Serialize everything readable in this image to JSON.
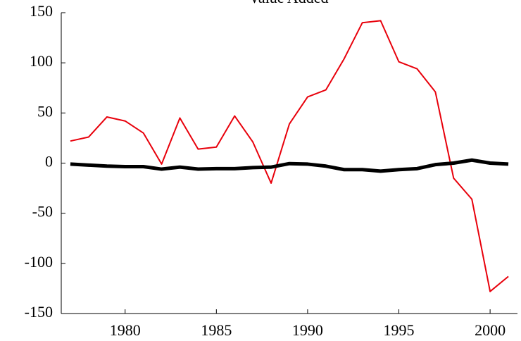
{
  "chart_data": {
    "type": "line",
    "title": "Value Added",
    "x": [
      1977,
      1978,
      1979,
      1980,
      1981,
      1982,
      1983,
      1984,
      1985,
      1986,
      1987,
      1988,
      1989,
      1990,
      1991,
      1992,
      1993,
      1994,
      1995,
      1996,
      1997,
      1998,
      1999,
      2000,
      2001
    ],
    "series": [
      {
        "color": "#e8000b",
        "values": [
          22,
          26,
          46,
          42,
          30,
          -1,
          45,
          14,
          16,
          47,
          21,
          -20,
          39,
          66,
          73,
          104,
          140,
          142,
          101,
          94,
          71,
          -15,
          -36,
          -128,
          -113
        ]
      },
      {
        "color": "#000000",
        "values": [
          -1,
          -2,
          -3,
          -3.5,
          -3.5,
          -6,
          -4,
          -6,
          -5.5,
          -5.5,
          -4.5,
          -4,
          -0.5,
          -1,
          -3,
          -6.5,
          -6.5,
          -8,
          -6.5,
          -5.5,
          -1.5,
          0,
          3,
          0,
          -1
        ]
      }
    ],
    "xlim": [
      1976.5,
      2001.5
    ],
    "xticks": [
      1980,
      1985,
      1990,
      1995,
      2000
    ],
    "ylim": [
      -150,
      150
    ],
    "yticks": [
      -150,
      -100,
      -50,
      0,
      50,
      100,
      150
    ]
  }
}
